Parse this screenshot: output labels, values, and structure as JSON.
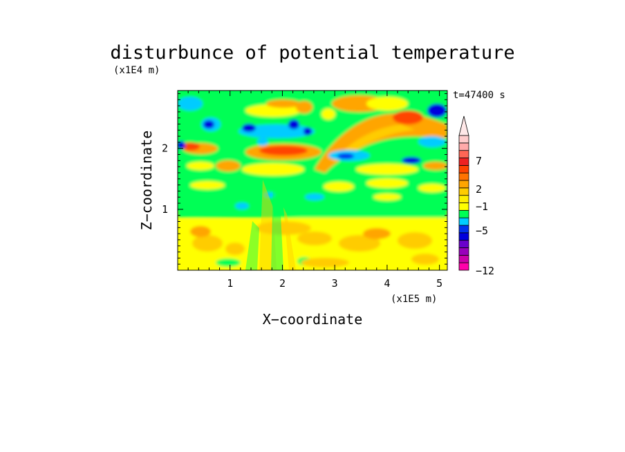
{
  "chart_data": {
    "type": "heatmap",
    "title": "disturbunce of potential temperature",
    "xlabel": "X−coordinate",
    "ylabel": "Z−coordinate",
    "x_unit": "(x1E5 m)",
    "y_unit": "(x1E4 m)",
    "time_label": "t=47400 s",
    "xlim": [
      0,
      5.15
    ],
    "ylim": [
      0,
      2.95
    ],
    "x_ticks": [
      "1",
      "2",
      "3",
      "4",
      "5"
    ],
    "y_ticks": [
      "1",
      "2"
    ],
    "colorbar": {
      "ticks": [
        "7",
        "2",
        "−1",
        "−5",
        "−12"
      ],
      "colors": [
        "#ff00aa",
        "#cc00aa",
        "#9900bb",
        "#6a00cc",
        "#0000dd",
        "#0033ee",
        "#00ccff",
        "#00ff55",
        "#ffff00",
        "#ffee00",
        "#ffcc00",
        "#ffa500",
        "#ff7300",
        "#ff4400",
        "#ee2222",
        "#ff6655",
        "#ffaaaa",
        "#ffcccc"
      ],
      "extend_top": true
    },
    "fields": {
      "note_levels": "shading shows contour-filled temperature disturbance levels"
    }
  }
}
